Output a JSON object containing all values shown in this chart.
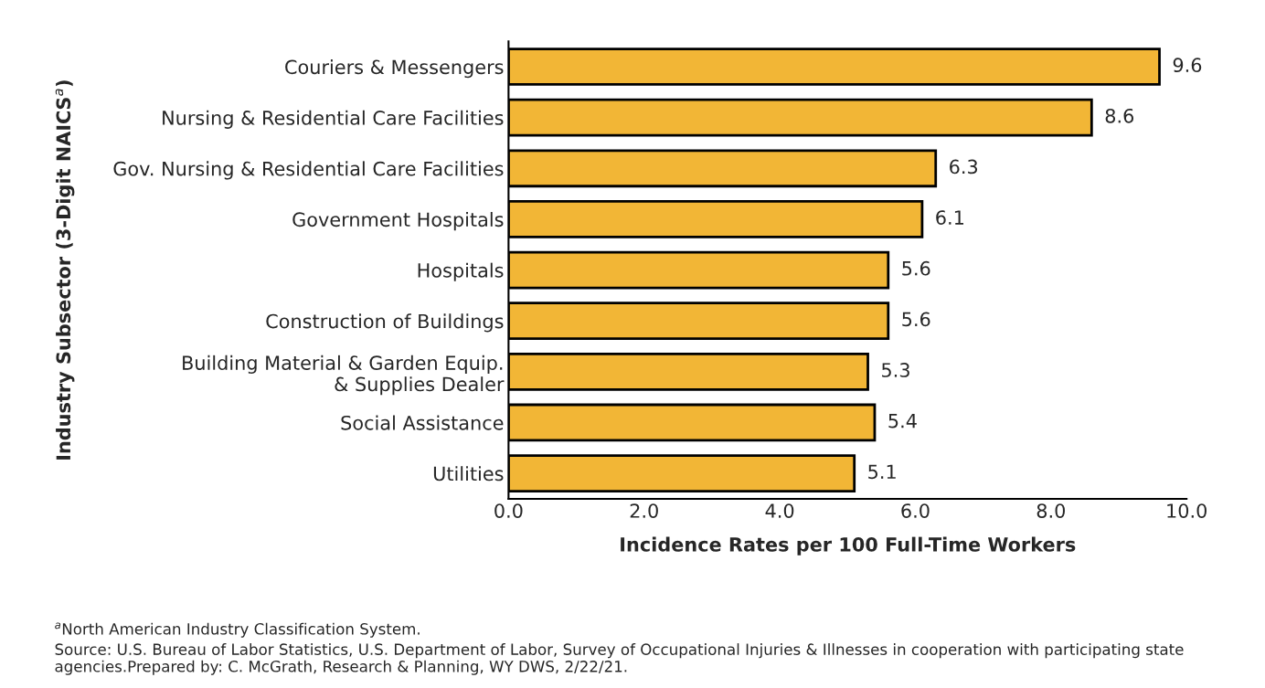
{
  "chart_data": {
    "type": "bar",
    "orientation": "horizontal",
    "categories": [
      "Couriers & Messengers",
      "Nursing & Residential Care Facilities",
      "Gov. Nursing & Residential Care Facilities",
      "Government Hospitals",
      "Hospitals",
      "Construction of Buildings",
      "Building Material & Garden Equip.\n& Supplies Dealer",
      "Social Assistance",
      "Utilities"
    ],
    "values": [
      9.6,
      8.6,
      6.3,
      6.1,
      5.6,
      5.6,
      5.3,
      5.4,
      5.1
    ],
    "data_labels": true,
    "color": "#f2b636",
    "xlim": [
      0,
      10
    ],
    "xticks": [
      {
        "value": 0,
        "label": "0.0"
      },
      {
        "value": 2,
        "label": "2.0"
      },
      {
        "value": 4,
        "label": "4.0"
      },
      {
        "value": 6,
        "label": "6.0"
      },
      {
        "value": 8,
        "label": "8.0"
      },
      {
        "value": 10,
        "label": "10.0"
      }
    ],
    "xlabel": "Incidence Rates per 100 Full-Time Workers",
    "ylabel": "Industry Subsector (3-Digit NAICS$^{a}$)",
    "grid": false,
    "legend": false,
    "annotations": [
      "$^{a}$North American Industry Classification System.",
      "Source: U.S. Bureau of Labor Statistics, U.S. Department of Labor, Survey of Occupational Injuries & Illnesses in cooperation with participating state agencies.Prepared by: C. McGrath, Research & Planning, WY DWS, 2/22/21."
    ]
  }
}
